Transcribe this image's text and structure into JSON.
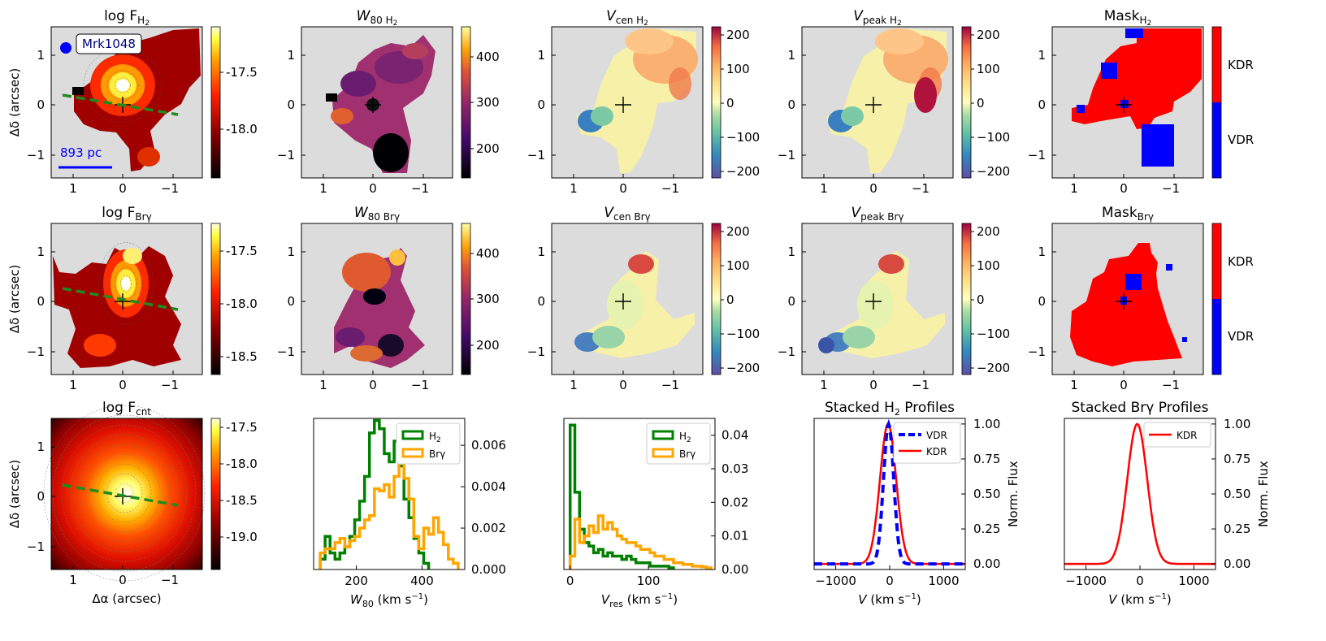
{
  "figure": {
    "galaxy_label": "Mrk1048",
    "scale_bar_label": "893 pc",
    "axis_label_x": "Δα (arcsec)",
    "axis_label_y": "Δδ (arcsec)",
    "map_ticks_x": [
      "1",
      "0",
      "−1"
    ],
    "map_ticks_y": [
      "1",
      "0",
      "−1"
    ],
    "colors": {
      "no_data": "#dcdcdc",
      "kdr": "#ff0000",
      "vdr": "#0000ff",
      "h2": "#008000",
      "brg": "#ffa500",
      "pa_line": "#1e8c1e"
    }
  },
  "panels": {
    "flux_h2": {
      "title_main": "log F",
      "title_sub": "H",
      "title_sub2": "2",
      "colorbar_ticks": [
        "-17.5",
        "-18.0"
      ]
    },
    "w80_h2": {
      "title_main": "W",
      "title_sub": "80 H",
      "title_sub2": "2",
      "colorbar_ticks": [
        "400",
        "300",
        "200"
      ]
    },
    "vcen_h2": {
      "title_main": "V",
      "title_sub": "cen H",
      "title_sub2": "2",
      "colorbar_ticks": [
        "200",
        "100",
        "0",
        "−100",
        "−200"
      ]
    },
    "vpeak_h2": {
      "title_main": "V",
      "title_sub": "peak H",
      "title_sub2": "2",
      "colorbar_ticks": [
        "200",
        "100",
        "0",
        "−100",
        "−200"
      ]
    },
    "mask_h2": {
      "title_main": "Mask",
      "title_sub": "H",
      "title_sub2": "2",
      "colorbar_ticks": [
        "KDR",
        "VDR"
      ]
    },
    "flux_brg": {
      "title_main": "log F",
      "title_sub": "Brγ",
      "colorbar_ticks": [
        "-17.5",
        "-18.0",
        "-18.5"
      ]
    },
    "w80_brg": {
      "title_main": "W",
      "title_sub": "80 Brγ",
      "colorbar_ticks": [
        "400",
        "300",
        "200"
      ]
    },
    "vcen_brg": {
      "title_main": "V",
      "title_sub": "cen Brγ",
      "colorbar_ticks": [
        "200",
        "100",
        "0",
        "−100",
        "−200"
      ]
    },
    "vpeak_brg": {
      "title_main": "V",
      "title_sub": "peak Brγ",
      "colorbar_ticks": [
        "200",
        "100",
        "0",
        "−100",
        "−200"
      ]
    },
    "mask_brg": {
      "title_main": "Mask",
      "title_sub": "Brγ",
      "colorbar_ticks": [
        "KDR",
        "VDR"
      ]
    },
    "flux_cnt": {
      "title_main": "log F",
      "title_sub": "cnt",
      "colorbar_ticks": [
        "-17.5",
        "-18.0",
        "-18.5",
        "-19.0"
      ]
    }
  },
  "chart_data": [
    {
      "id": "w80_hist",
      "type": "histogram",
      "xlabel_main": "W",
      "xlabel_sub": "80",
      "xlabel_unit": " (km s",
      "xlabel_exp": "−1",
      "xlabel_close": ")",
      "xlim": [
        70,
        530
      ],
      "ylim": [
        0,
        0.0073
      ],
      "xticks": [
        200,
        400
      ],
      "yticks": [
        0.0,
        0.002,
        0.004,
        0.006
      ],
      "ytick_labels": [
        "0.000",
        "0.002",
        "0.004",
        "0.006"
      ],
      "yaxis_side": "right",
      "legend": [
        "H2",
        "Brγ"
      ],
      "series": [
        {
          "name": "H2",
          "color": "#008000",
          "edges": [
            90,
            105,
            120,
            135,
            150,
            165,
            180,
            195,
            210,
            225,
            240,
            255,
            270,
            285,
            300,
            315,
            330,
            345,
            360,
            375,
            390,
            405,
            420
          ],
          "values": [
            0.0005,
            0.0016,
            0.0008,
            0.0005,
            0.0008,
            0.0011,
            0.0016,
            0.0024,
            0.0033,
            0.0045,
            0.0066,
            0.0072,
            0.0068,
            0.0056,
            0.0052,
            0.0062,
            0.005,
            0.0034,
            0.0025,
            0.0015,
            0.0008,
            0.0003
          ]
        },
        {
          "name": "Brγ",
          "color": "#ffa500",
          "edges": [
            90,
            105,
            120,
            135,
            150,
            165,
            180,
            195,
            210,
            225,
            240,
            255,
            270,
            285,
            300,
            315,
            330,
            345,
            360,
            375,
            390,
            405,
            420,
            435,
            450,
            465,
            480,
            495,
            510
          ],
          "values": [
            0.0008,
            0.001,
            0.001,
            0.0013,
            0.0015,
            0.0011,
            0.0014,
            0.0016,
            0.002,
            0.0024,
            0.0026,
            0.0039,
            0.0038,
            0.0041,
            0.0035,
            0.0045,
            0.0062,
            0.0044,
            0.0034,
            0.0016,
            0.001,
            0.002,
            0.0017,
            0.0025,
            0.0018,
            0.0012,
            0.0005,
            0.0003
          ]
        }
      ]
    },
    {
      "id": "vres_hist",
      "type": "histogram",
      "xlabel_main": "V",
      "xlabel_sub": "res",
      "xlabel_unit": " (km s",
      "xlabel_exp": "−1",
      "xlabel_close": ")",
      "xlim": [
        -8,
        185
      ],
      "ylim": [
        0,
        0.045
      ],
      "xticks": [
        0,
        100
      ],
      "yticks": [
        0.0,
        0.01,
        0.02,
        0.03,
        0.04
      ],
      "ytick_labels": [
        "0.00",
        "0.01",
        "0.02",
        "0.03",
        "0.04"
      ],
      "yaxis_side": "right",
      "legend": [
        "H2",
        "Brγ"
      ],
      "series": [
        {
          "name": "H2",
          "color": "#008000",
          "edges": [
            0,
            6,
            12,
            18,
            24,
            30,
            36,
            42,
            48,
            54,
            60,
            66,
            72,
            78,
            84,
            90,
            96,
            102,
            108,
            114,
            120,
            126,
            132
          ],
          "values": [
            0.043,
            0.023,
            0.012,
            0.008,
            0.007,
            0.005,
            0.006,
            0.004,
            0.005,
            0.004,
            0.004,
            0.003,
            0.004,
            0.003,
            0.002,
            0.002,
            0.002,
            0.001,
            0.001,
            0.001,
            0.001,
            0.0005
          ]
        },
        {
          "name": "Brγ",
          "color": "#ffa500",
          "edges": [
            0,
            6,
            12,
            18,
            24,
            30,
            36,
            42,
            48,
            54,
            60,
            66,
            72,
            78,
            84,
            90,
            96,
            102,
            108,
            114,
            120,
            126,
            132,
            138,
            144,
            150,
            156,
            162,
            168,
            174,
            180
          ],
          "values": [
            0.004,
            0.015,
            0.008,
            0.01,
            0.013,
            0.011,
            0.016,
            0.012,
            0.014,
            0.012,
            0.01,
            0.009,
            0.008,
            0.008,
            0.007,
            0.006,
            0.006,
            0.005,
            0.004,
            0.004,
            0.003,
            0.003,
            0.002,
            0.002,
            0.0015,
            0.0015,
            0.001,
            0.001,
            0.0008,
            0.0005
          ]
        }
      ]
    },
    {
      "id": "stack_h2",
      "type": "line",
      "title": "Stacked H",
      "title_sub": "2",
      "title_tail": " Profiles",
      "xlabel_main": "V",
      "xlabel_unit": " (km s",
      "xlabel_exp": "−1",
      "xlabel_close": ")",
      "ylabel": "Norm. Flux",
      "xlim": [
        -1400,
        1400
      ],
      "ylim": [
        -0.04,
        1.04
      ],
      "xticks": [
        -1000,
        0,
        1000
      ],
      "xtick_labels": [
        "−1000",
        "0",
        "1000"
      ],
      "yticks": [
        0.0,
        0.25,
        0.5,
        0.75,
        1.0
      ],
      "ytick_labels": [
        "0.00",
        "0.25",
        "0.50",
        "0.75",
        "1.00"
      ],
      "yaxis_side": "right",
      "series": [
        {
          "name": "VDR",
          "color": "#0000ff",
          "style": "dashed",
          "center": -20,
          "sigma": 95
        },
        {
          "name": "KDR",
          "color": "#ff0000",
          "style": "solid",
          "center": -30,
          "sigma": 150
        }
      ]
    },
    {
      "id": "stack_brg",
      "type": "line",
      "title": "Stacked Brγ Profiles",
      "xlabel_main": "V",
      "xlabel_unit": " (km s",
      "xlabel_exp": "−1",
      "xlabel_close": ")",
      "ylabel": "Norm. Flux",
      "xlim": [
        -1400,
        1400
      ],
      "ylim": [
        -0.04,
        1.04
      ],
      "xticks": [
        -1000,
        0,
        1000
      ],
      "xtick_labels": [
        "−1000",
        "0",
        "1000"
      ],
      "yticks": [
        0.0,
        0.25,
        0.5,
        0.75,
        1.0
      ],
      "ytick_labels": [
        "0.00",
        "0.25",
        "0.50",
        "0.75",
        "1.00"
      ],
      "yaxis_side": "right",
      "series": [
        {
          "name": "KDR",
          "color": "#ff0000",
          "style": "solid",
          "center": -50,
          "sigma": 185
        }
      ]
    }
  ]
}
